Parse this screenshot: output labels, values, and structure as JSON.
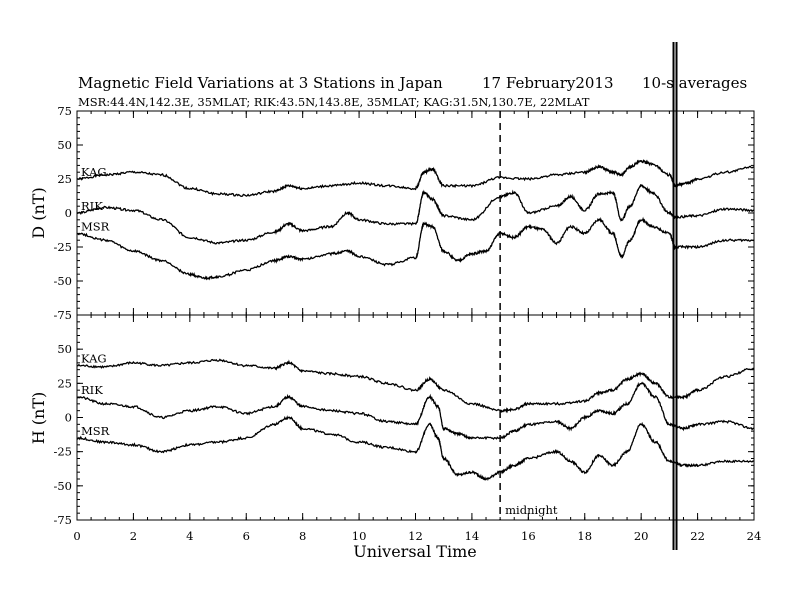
{
  "header": {
    "title": "Magnetic Field Variations at 3 Stations in Japan",
    "date": "17 February2013",
    "averages": "10-s averages",
    "stations_line": "MSR:44.4N,142.3E, 35MLAT;  RIK:43.5N,143.8E, 35MLAT;  KAG:31.5N,130.7E, 22MLAT"
  },
  "chart_data": [
    {
      "type": "line",
      "panel": "D",
      "ylabel": "D (nT)",
      "xlabel": "",
      "xlim": [
        0,
        24
      ],
      "ylim": [
        -75,
        75
      ],
      "yticks": [
        75,
        50,
        25,
        0,
        -25,
        -50,
        -75
      ],
      "xticks": [
        0,
        2,
        4,
        6,
        8,
        10,
        12,
        14,
        16,
        18,
        20,
        22,
        24
      ],
      "series": [
        {
          "name": "KAG",
          "x": [
            0,
            1,
            2,
            3,
            4,
            5,
            6,
            7,
            7.5,
            8,
            9,
            10,
            11,
            12,
            12.3,
            12.6,
            13,
            14,
            15,
            16,
            17,
            18,
            18.5,
            19,
            19.3,
            19.6,
            20,
            20.4,
            21,
            21.2,
            21.6,
            22,
            23,
            24
          ],
          "y": [
            25,
            28,
            30,
            28,
            18,
            14,
            13,
            16,
            20,
            18,
            20,
            22,
            20,
            18,
            30,
            32,
            20,
            20,
            26,
            25,
            28,
            30,
            34,
            30,
            28,
            34,
            38,
            36,
            28,
            20,
            22,
            25,
            30,
            34
          ]
        },
        {
          "name": "RIK",
          "x": [
            0,
            1,
            2,
            3,
            4,
            5,
            6,
            7,
            7.5,
            8,
            9,
            9.6,
            10,
            11,
            12,
            12.3,
            12.6,
            13,
            14,
            15,
            15.5,
            16,
            17,
            17.5,
            18,
            18.5,
            19,
            19.3,
            19.6,
            20,
            20.4,
            21,
            21.2,
            22,
            23,
            24
          ],
          "y": [
            0,
            4,
            2,
            -5,
            -18,
            -22,
            -20,
            -14,
            -8,
            -13,
            -10,
            0,
            -5,
            -8,
            -8,
            15,
            10,
            -2,
            -5,
            12,
            15,
            0,
            5,
            12,
            2,
            14,
            15,
            -5,
            5,
            20,
            15,
            0,
            -3,
            -2,
            3,
            2
          ]
        },
        {
          "name": "MSR",
          "x": [
            0,
            1,
            2,
            3,
            4,
            4.5,
            5,
            6,
            7,
            7.5,
            8,
            9,
            9.6,
            10,
            11,
            12,
            12.3,
            12.6,
            13,
            13.5,
            14,
            14.5,
            15,
            15.5,
            16,
            16.5,
            17,
            17.5,
            18,
            18.5,
            19,
            19.3,
            19.6,
            20,
            20.4,
            21,
            21.2,
            22,
            23,
            24
          ],
          "y": [
            -15,
            -20,
            -28,
            -35,
            -45,
            -48,
            -47,
            -42,
            -35,
            -32,
            -34,
            -30,
            -28,
            -32,
            -38,
            -33,
            -8,
            -10,
            -28,
            -35,
            -30,
            -28,
            -15,
            -18,
            -10,
            -12,
            -22,
            -10,
            -15,
            -5,
            -15,
            -32,
            -20,
            -5,
            -10,
            -15,
            -25,
            -25,
            -20,
            -20
          ]
        }
      ]
    },
    {
      "type": "line",
      "panel": "H",
      "ylabel": "H (nT)",
      "xlabel": "Universal Time",
      "xlim": [
        0,
        24
      ],
      "ylim": [
        -75,
        75
      ],
      "yticks": [
        50,
        25,
        0,
        -25,
        -50,
        -75
      ],
      "xticks": [
        0,
        2,
        4,
        6,
        8,
        10,
        12,
        14,
        16,
        18,
        20,
        22,
        24
      ],
      "series": [
        {
          "name": "KAG",
          "x": [
            0,
            1,
            2,
            3,
            4,
            5,
            6,
            7,
            7.5,
            8,
            9,
            10,
            11,
            12,
            12.5,
            13,
            14,
            15,
            15.5,
            16,
            17,
            18,
            18.5,
            19,
            19.5,
            20,
            20.5,
            21,
            21.5,
            22,
            23,
            24
          ],
          "y": [
            38,
            37,
            40,
            38,
            40,
            42,
            38,
            36,
            40,
            34,
            32,
            30,
            25,
            20,
            28,
            20,
            10,
            5,
            6,
            10,
            10,
            12,
            18,
            20,
            28,
            32,
            25,
            15,
            15,
            20,
            30,
            36
          ]
        },
        {
          "name": "RIK",
          "x": [
            0,
            1,
            2,
            3,
            4,
            5,
            6,
            7,
            7.5,
            8,
            9,
            10,
            11,
            12,
            12.5,
            12.8,
            13,
            13.5,
            14,
            15,
            15.5,
            16,
            17,
            17.5,
            18,
            18.5,
            19,
            19.5,
            20,
            20.5,
            21,
            21.5,
            22,
            23,
            24
          ],
          "y": [
            15,
            10,
            8,
            0,
            5,
            8,
            3,
            8,
            15,
            8,
            5,
            3,
            -3,
            -5,
            15,
            8,
            -8,
            -12,
            -15,
            -15,
            -10,
            -5,
            -3,
            -8,
            0,
            5,
            3,
            10,
            25,
            15,
            -5,
            -8,
            -5,
            -3,
            -8
          ]
        },
        {
          "name": "MSR",
          "x": [
            0,
            1,
            2,
            3,
            4,
            5,
            6,
            7,
            7.5,
            8,
            9,
            10,
            11,
            12,
            12.5,
            12.8,
            13,
            13.5,
            14,
            14.5,
            15,
            15.5,
            16,
            17,
            17.5,
            18,
            18.5,
            19,
            19.5,
            20,
            20.5,
            21,
            21.5,
            22,
            23,
            24
          ],
          "y": [
            -15,
            -18,
            -20,
            -25,
            -20,
            -18,
            -15,
            -5,
            0,
            -8,
            -12,
            -18,
            -22,
            -25,
            -5,
            -15,
            -30,
            -42,
            -40,
            -45,
            -40,
            -35,
            -30,
            -25,
            -32,
            -40,
            -28,
            -35,
            -25,
            -5,
            -18,
            -32,
            -35,
            -35,
            -32,
            -32
          ]
        }
      ]
    }
  ],
  "annotations": {
    "midnight_label": "midnight",
    "midnight_hour": 15,
    "marker_hour": 21.2
  },
  "colors": {
    "line": "#000000",
    "background": "#ffffff"
  }
}
